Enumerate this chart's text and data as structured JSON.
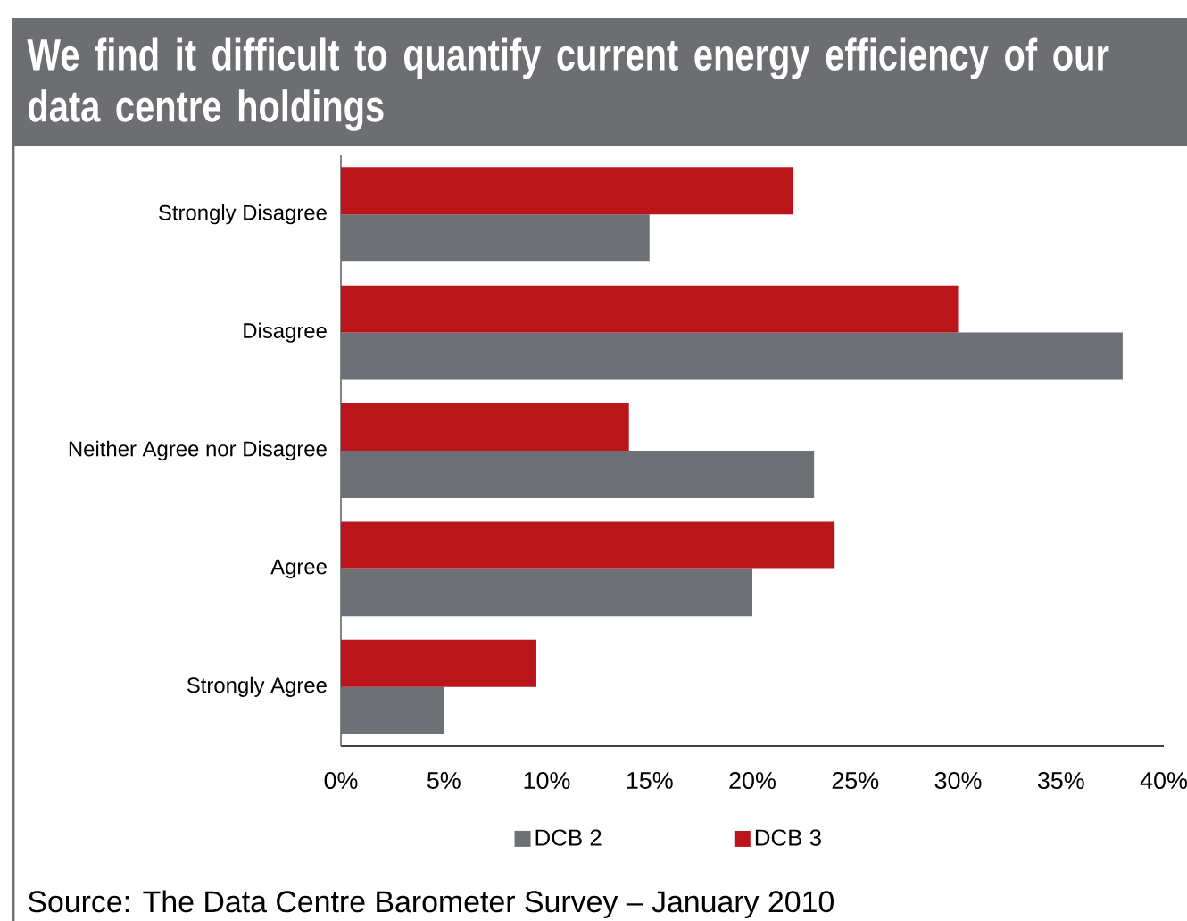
{
  "chart_data": {
    "type": "bar",
    "orientation": "horizontal",
    "title": "We find it difficult to quantify current energy efficiency of our data centre holdings",
    "categories": [
      "Strongly Disagree",
      "Disagree",
      "Neither Agree nor Disagree",
      "Agree",
      "Strongly Agree"
    ],
    "series": [
      {
        "name": "DCB 2",
        "color": "#6d7075",
        "values": [
          15,
          38,
          23,
          20,
          5
        ]
      },
      {
        "name": "DCB 3",
        "color": "#bb151c",
        "values": [
          22,
          30,
          14,
          24,
          9.5
        ]
      }
    ],
    "xlim": [
      0,
      40
    ],
    "xticks": [
      {
        "value": 0,
        "label": "0%"
      },
      {
        "value": 5,
        "label": "5%"
      },
      {
        "value": 10,
        "label": "10%"
      },
      {
        "value": 15,
        "label": "15%"
      },
      {
        "value": 20,
        "label": "20%"
      },
      {
        "value": 25,
        "label": "25%"
      },
      {
        "value": 30,
        "label": "30%"
      },
      {
        "value": 35,
        "label": "35%"
      },
      {
        "value": 40,
        "label": "40%"
      }
    ],
    "legend": "bottom",
    "annotations": [
      "Source: The Data Centre Barometer Survey – January 2010"
    ]
  }
}
